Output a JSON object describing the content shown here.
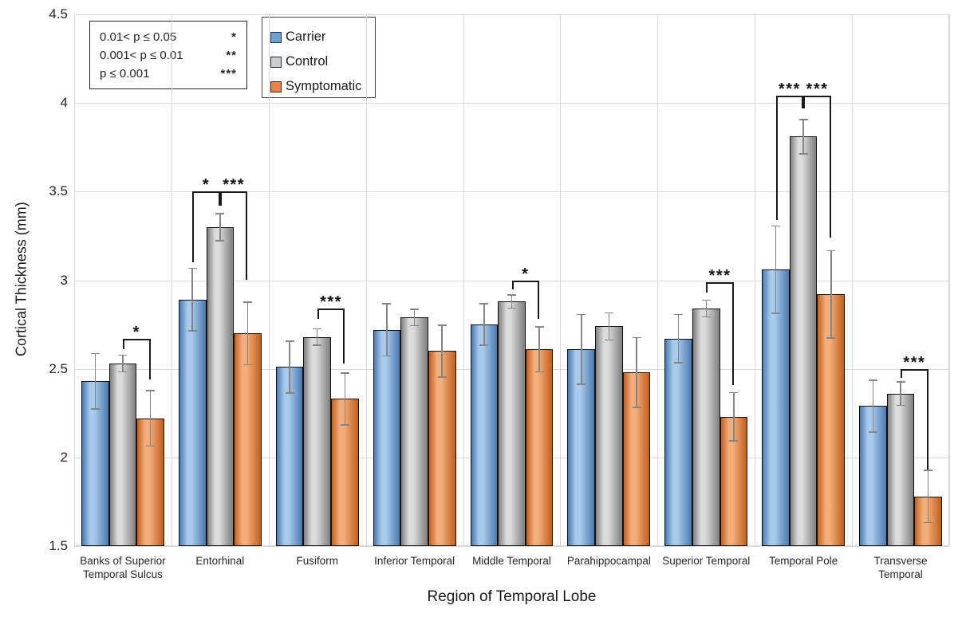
{
  "chart_data": {
    "type": "bar",
    "title": "",
    "xlabel": "Region of Temporal Lobe",
    "ylabel": "Cortical Thickness (mm)",
    "ylim": [
      1.5,
      4.5
    ],
    "ytick_step": 0.5,
    "grid": true,
    "legend_position": "top-inside",
    "categories": [
      "Banks of Superior Temporal Sulcus",
      "Entorhinal",
      "Fusiform",
      "Inferior Temporal",
      "Middle Temporal",
      "Parahippocampal",
      "Superior Temporal",
      "Temporal Pole",
      "Transverse Temporal"
    ],
    "series": [
      {
        "name": "Carrier",
        "swatch_color": "#6f9fd4",
        "fill_light": "#a9cbeb",
        "fill_dark": "#4b79b0",
        "values": [
          2.43,
          2.89,
          2.51,
          2.72,
          2.75,
          2.61,
          2.67,
          3.06,
          2.29
        ],
        "errors": [
          0.16,
          0.18,
          0.15,
          0.15,
          0.12,
          0.2,
          0.14,
          0.25,
          0.15
        ]
      },
      {
        "name": "Control",
        "swatch_color": "#cccccc",
        "fill_light": "#dcdcdc",
        "fill_dark": "#7f7f7f",
        "values": [
          2.53,
          3.3,
          2.68,
          2.79,
          2.88,
          2.74,
          2.84,
          3.81,
          2.36
        ],
        "errors": [
          0.05,
          0.08,
          0.05,
          0.05,
          0.04,
          0.08,
          0.05,
          0.1,
          0.07
        ]
      },
      {
        "name": "Symptomatic",
        "swatch_color": "#e8834a",
        "fill_light": "#f4ae7c",
        "fill_dark": "#c05f1e",
        "values": [
          2.22,
          2.7,
          2.33,
          2.6,
          2.61,
          2.48,
          2.23,
          2.92,
          1.78
        ],
        "errors": [
          0.16,
          0.18,
          0.15,
          0.15,
          0.13,
          0.2,
          0.14,
          0.25,
          0.15
        ]
      }
    ],
    "significance_brackets": [
      {
        "cat_index": 0,
        "from_series": 1,
        "to_series": 2,
        "label": "*",
        "bar_y": 2.67,
        "left_leg_end": 2.61,
        "right_leg_end": 2.44
      },
      {
        "cat_index": 1,
        "from_series": 0,
        "to_series": 1,
        "label": "*",
        "bar_y": 3.5,
        "left_leg_end": 3.1,
        "right_leg_end": 3.42
      },
      {
        "cat_index": 1,
        "from_series": 1,
        "to_series": 2,
        "label": "***",
        "bar_y": 3.5,
        "left_leg_end": 3.42,
        "right_leg_end": 3.0
      },
      {
        "cat_index": 2,
        "from_series": 1,
        "to_series": 2,
        "label": "***",
        "bar_y": 2.84,
        "left_leg_end": 2.78,
        "right_leg_end": 2.53
      },
      {
        "cat_index": 4,
        "from_series": 1,
        "to_series": 2,
        "label": "*",
        "bar_y": 3.0,
        "left_leg_end": 2.95,
        "right_leg_end": 2.78
      },
      {
        "cat_index": 6,
        "from_series": 1,
        "to_series": 2,
        "label": "***",
        "bar_y": 2.99,
        "left_leg_end": 2.93,
        "right_leg_end": 2.41
      },
      {
        "cat_index": 7,
        "from_series": 0,
        "to_series": 1,
        "label": "***",
        "bar_y": 4.04,
        "left_leg_end": 3.34,
        "right_leg_end": 3.97
      },
      {
        "cat_index": 7,
        "from_series": 1,
        "to_series": 2,
        "label": "***",
        "bar_y": 4.04,
        "left_leg_end": 3.97,
        "right_leg_end": 3.24
      },
      {
        "cat_index": 8,
        "from_series": 1,
        "to_series": 2,
        "label": "***",
        "bar_y": 2.5,
        "left_leg_end": 2.45,
        "right_leg_end": 1.93
      }
    ],
    "p_legend": [
      {
        "text": "0.01< p ≤ 0.05",
        "stars": "*"
      },
      {
        "text": "0.001< p ≤ 0.01",
        "stars": "**"
      },
      {
        "text": "p ≤ 0.001",
        "stars": "***"
      }
    ],
    "colors": {
      "gridline": "#d9d9d9",
      "error_bar": "#858585",
      "bar_border": "#111111",
      "sig_bracket": "#1a1a1a",
      "text": "#262626"
    }
  }
}
